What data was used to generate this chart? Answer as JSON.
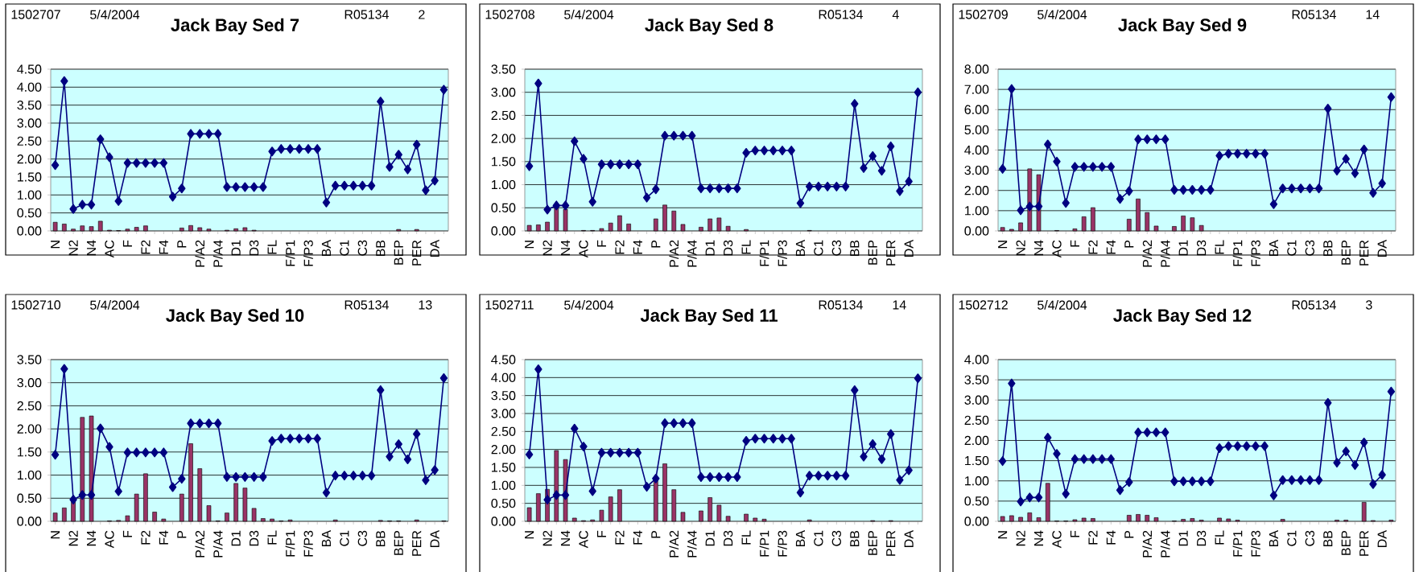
{
  "chart_data": [
    {
      "type": "bar",
      "title": "Jack Bay Sed 7",
      "annotations": [
        "1502707",
        "5/4/2004",
        "R05134",
        "2"
      ],
      "categories": [
        "N",
        null,
        "N2",
        null,
        "N4",
        null,
        "AC",
        null,
        "F",
        null,
        "F2",
        null,
        "F4",
        null,
        "P",
        null,
        "P/A2",
        null,
        "P/A4",
        null,
        "D1",
        null,
        "D3",
        null,
        "FL",
        null,
        "F/P1",
        null,
        "F/P3",
        null,
        "BA",
        null,
        "C1",
        null,
        "C3",
        null,
        "BB",
        null,
        "BEP",
        null,
        "PER",
        null,
        "DA",
        null
      ],
      "series": [
        {
          "color": "#993366",
          "values": [
            0.24,
            0.19,
            0.05,
            0.14,
            0.12,
            0.27,
            0.02,
            0.01,
            0.05,
            0.1,
            0.14,
            null,
            null,
            null,
            0.08,
            0.15,
            0.09,
            0.05,
            null,
            0.02,
            0.06,
            0.09,
            0.02,
            null,
            null,
            null,
            null,
            null,
            null,
            null,
            null,
            null,
            null,
            null,
            null,
            null,
            null,
            null,
            0.04,
            null,
            0.04,
            null,
            null,
            null
          ]
        },
        {
          "type": "line",
          "color": "#000080",
          "values": [
            1.83,
            4.17,
            0.61,
            0.73,
            0.73,
            2.55,
            2.05,
            0.83,
            1.89,
            1.89,
            1.89,
            1.89,
            1.89,
            0.95,
            1.18,
            2.7,
            2.7,
            2.7,
            2.7,
            1.22,
            1.22,
            1.22,
            1.22,
            1.22,
            2.21,
            2.28,
            2.28,
            2.28,
            2.28,
            2.28,
            0.79,
            1.26,
            1.26,
            1.26,
            1.26,
            1.26,
            3.6,
            1.78,
            2.12,
            1.71,
            2.4,
            1.13,
            1.4,
            3.93
          ]
        }
      ],
      "ylim": [
        0,
        4.5
      ],
      "yticks": [
        {
          "value": 0,
          "label": "0.00"
        },
        {
          "value": 0.5,
          "label": "0.50"
        },
        {
          "value": 1,
          "label": "1.00"
        },
        {
          "value": 1.5,
          "label": "1.50"
        },
        {
          "value": 2,
          "label": "2.00"
        },
        {
          "value": 2.5,
          "label": "2.50"
        },
        {
          "value": 3,
          "label": "3.00"
        },
        {
          "value": 3.5,
          "label": "3.50"
        },
        {
          "value": 4,
          "label": "4.00"
        },
        {
          "value": 4.5,
          "label": "4.50"
        }
      ],
      "grid": "y",
      "marker": "diamond"
    },
    {
      "type": "bar",
      "title": "Jack Bay Sed 8",
      "annotations": [
        "1502708",
        "5/4/2004",
        "R05134",
        "4"
      ],
      "categories": [
        "N",
        null,
        "N2",
        null,
        "N4",
        null,
        "AC",
        null,
        "F",
        null,
        "F2",
        null,
        "F4",
        null,
        "P",
        null,
        "P/A2",
        null,
        "P/A4",
        null,
        "D1",
        null,
        "D3",
        null,
        "FL",
        null,
        "F/P1",
        null,
        "F/P3",
        null,
        "BA",
        null,
        "C1",
        null,
        "C3",
        null,
        "BB",
        null,
        "BEP",
        null,
        "PER",
        null,
        "DA",
        null
      ],
      "series": [
        {
          "color": "#993366",
          "values": [
            0.12,
            0.13,
            0.19,
            0.55,
            0.47,
            null,
            0.01,
            0.01,
            0.05,
            0.17,
            0.33,
            0.15,
            null,
            null,
            0.26,
            0.56,
            0.43,
            0.14,
            null,
            0.08,
            0.26,
            0.28,
            0.1,
            null,
            0.03,
            null,
            null,
            null,
            null,
            null,
            null,
            0.01,
            null,
            null,
            null,
            null,
            null,
            null,
            null,
            null,
            null,
            null,
            null,
            null
          ]
        },
        {
          "type": "line",
          "color": "#000080",
          "values": [
            1.4,
            3.19,
            0.46,
            0.55,
            0.55,
            1.94,
            1.56,
            0.63,
            1.44,
            1.44,
            1.44,
            1.44,
            1.44,
            0.72,
            0.9,
            2.06,
            2.06,
            2.06,
            2.06,
            0.92,
            0.92,
            0.92,
            0.92,
            0.92,
            1.69,
            1.74,
            1.74,
            1.74,
            1.74,
            1.74,
            0.6,
            0.96,
            0.96,
            0.96,
            0.96,
            0.96,
            2.75,
            1.36,
            1.62,
            1.3,
            1.83,
            0.86,
            1.07,
            3.0
          ]
        }
      ],
      "ylim": [
        0,
        3.5
      ],
      "yticks": [
        {
          "value": 0,
          "label": "0.00"
        },
        {
          "value": 0.5,
          "label": "0.50"
        },
        {
          "value": 1,
          "label": "1.00"
        },
        {
          "value": 1.5,
          "label": "1.50"
        },
        {
          "value": 2,
          "label": "2.00"
        },
        {
          "value": 2.5,
          "label": "2.50"
        },
        {
          "value": 3,
          "label": "3.00"
        },
        {
          "value": 3.5,
          "label": "3.50"
        }
      ],
      "grid": "y",
      "marker": "diamond"
    },
    {
      "type": "bar",
      "title": "Jack Bay Sed 9",
      "annotations": [
        "1502709",
        "5/4/2004",
        "R05134",
        "14"
      ],
      "categories": [
        "N",
        null,
        "N2",
        null,
        "N4",
        null,
        "AC",
        null,
        "F",
        null,
        "F2",
        null,
        "F4",
        null,
        "P",
        null,
        "P/A2",
        null,
        "P/A4",
        null,
        "D1",
        null,
        "D3",
        null,
        "FL",
        null,
        "F/P1",
        null,
        "F/P3",
        null,
        "BA",
        null,
        "C1",
        null,
        "C3",
        null,
        "BB",
        null,
        "BEP",
        null,
        "PER",
        null,
        "DA",
        null
      ],
      "series": [
        {
          "color": "#993366",
          "values": [
            0.17,
            0.08,
            0.4,
            3.07,
            2.78,
            null,
            0.02,
            null,
            0.1,
            0.7,
            1.15,
            null,
            null,
            null,
            0.58,
            1.58,
            0.91,
            0.24,
            null,
            0.22,
            0.74,
            0.65,
            0.27,
            null,
            null,
            null,
            null,
            null,
            null,
            null,
            null,
            null,
            null,
            null,
            null,
            null,
            null,
            null,
            null,
            null,
            null,
            null,
            null,
            null
          ]
        },
        {
          "type": "line",
          "color": "#000080",
          "values": [
            3.07,
            7.02,
            1.02,
            1.21,
            1.21,
            4.28,
            3.43,
            1.38,
            3.17,
            3.17,
            3.17,
            3.17,
            3.17,
            1.58,
            1.97,
            4.53,
            4.53,
            4.53,
            4.53,
            2.03,
            2.03,
            2.03,
            2.03,
            2.03,
            3.72,
            3.82,
            3.82,
            3.82,
            3.82,
            3.82,
            1.32,
            2.1,
            2.1,
            2.1,
            2.1,
            2.1,
            6.05,
            2.98,
            3.56,
            2.85,
            4.03,
            1.88,
            2.35,
            6.62
          ]
        }
      ],
      "ylim": [
        0,
        8
      ],
      "yticks": [
        {
          "value": 0,
          "label": "0.00"
        },
        {
          "value": 1,
          "label": "1.00"
        },
        {
          "value": 2,
          "label": "2.00"
        },
        {
          "value": 3,
          "label": "3.00"
        },
        {
          "value": 4,
          "label": "4.00"
        },
        {
          "value": 5,
          "label": "5.00"
        },
        {
          "value": 6,
          "label": "6.00"
        },
        {
          "value": 7,
          "label": "7.00"
        },
        {
          "value": 8,
          "label": "8.00"
        }
      ],
      "grid": "y",
      "marker": "diamond"
    },
    {
      "type": "bar",
      "title": "Jack Bay Sed 10",
      "annotations": [
        "1502710",
        "5/4/2004",
        "R05134",
        "13"
      ],
      "categories": [
        "N",
        null,
        "N2",
        null,
        "N4",
        null,
        "AC",
        null,
        "F",
        null,
        "F2",
        null,
        "F4",
        null,
        "P",
        null,
        "P/A2",
        null,
        "P/A4",
        null,
        "D1",
        null,
        "D3",
        null,
        "FL",
        null,
        "F/P1",
        null,
        "F/P3",
        null,
        "BA",
        null,
        "C1",
        null,
        "C3",
        null,
        "BB",
        null,
        "BEP",
        null,
        "PER",
        null,
        "DA",
        null
      ],
      "series": [
        {
          "color": "#993366",
          "values": [
            0.18,
            0.29,
            0.47,
            2.25,
            2.28,
            null,
            0.01,
            0.02,
            0.12,
            0.59,
            1.03,
            0.2,
            0.05,
            null,
            0.59,
            1.68,
            1.14,
            0.34,
            0.01,
            0.18,
            0.82,
            0.72,
            0.28,
            0.06,
            0.05,
            0.01,
            0.03,
            null,
            null,
            null,
            null,
            0.03,
            null,
            null,
            null,
            null,
            0.02,
            0.01,
            0.01,
            null,
            0.03,
            null,
            null,
            0.01
          ]
        },
        {
          "type": "line",
          "color": "#000080",
          "values": [
            1.44,
            3.3,
            0.47,
            0.57,
            0.57,
            2.01,
            1.61,
            0.65,
            1.49,
            1.49,
            1.49,
            1.49,
            1.49,
            0.74,
            0.92,
            2.12,
            2.12,
            2.12,
            2.12,
            0.96,
            0.96,
            0.96,
            0.96,
            0.96,
            1.74,
            1.79,
            1.79,
            1.79,
            1.79,
            1.79,
            0.62,
            0.99,
            0.99,
            0.99,
            0.99,
            0.99,
            2.84,
            1.4,
            1.67,
            1.34,
            1.89,
            0.89,
            1.11,
            3.1
          ]
        }
      ],
      "ylim": [
        0,
        3.5
      ],
      "yticks": [
        {
          "value": 0,
          "label": "0.00"
        },
        {
          "value": 0.5,
          "label": "0.50"
        },
        {
          "value": 1,
          "label": "1.00"
        },
        {
          "value": 1.5,
          "label": "1.50"
        },
        {
          "value": 2,
          "label": "2.00"
        },
        {
          "value": 2.5,
          "label": "2.50"
        },
        {
          "value": 3,
          "label": "3.00"
        },
        {
          "value": 3.5,
          "label": "3.50"
        }
      ],
      "grid": "y",
      "marker": "diamond"
    },
    {
      "type": "bar",
      "title": "Jack Bay Sed 11",
      "annotations": [
        "1502711",
        "5/4/2004",
        "R05134",
        "14"
      ],
      "categories": [
        "N",
        null,
        "N2",
        null,
        "N4",
        null,
        "AC",
        null,
        "F",
        null,
        "F2",
        null,
        "F4",
        null,
        "P",
        null,
        "P/A2",
        null,
        "P/A4",
        null,
        "D1",
        null,
        "D3",
        null,
        "FL",
        null,
        "F/P1",
        null,
        "F/P3",
        null,
        "BA",
        null,
        "C1",
        null,
        "C3",
        null,
        "BB",
        null,
        "BEP",
        null,
        "PER",
        null,
        "DA",
        null
      ],
      "series": [
        {
          "color": "#993366",
          "values": [
            0.38,
            0.77,
            0.89,
            1.97,
            1.72,
            0.09,
            0.02,
            0.04,
            0.31,
            0.68,
            0.88,
            null,
            null,
            null,
            1.2,
            1.6,
            0.88,
            0.25,
            null,
            0.29,
            0.66,
            0.45,
            0.14,
            null,
            0.2,
            0.09,
            0.06,
            null,
            null,
            null,
            null,
            0.04,
            null,
            null,
            null,
            null,
            null,
            null,
            0.02,
            null,
            0.02,
            null,
            null,
            null
          ]
        },
        {
          "type": "line",
          "color": "#000080",
          "values": [
            1.86,
            4.23,
            0.6,
            0.73,
            0.73,
            2.58,
            2.08,
            0.84,
            1.91,
            1.91,
            1.91,
            1.91,
            1.91,
            0.96,
            1.19,
            2.73,
            2.73,
            2.73,
            2.73,
            1.23,
            1.23,
            1.23,
            1.23,
            1.23,
            2.24,
            2.3,
            2.3,
            2.3,
            2.3,
            2.3,
            0.8,
            1.27,
            1.27,
            1.27,
            1.27,
            1.27,
            3.65,
            1.8,
            2.15,
            1.73,
            2.43,
            1.15,
            1.42,
            3.98
          ]
        }
      ],
      "ylim": [
        0,
        4.5
      ],
      "yticks": [
        {
          "value": 0,
          "label": "0.00"
        },
        {
          "value": 0.5,
          "label": "0.50"
        },
        {
          "value": 1,
          "label": "1.00"
        },
        {
          "value": 1.5,
          "label": "1.50"
        },
        {
          "value": 2,
          "label": "2.00"
        },
        {
          "value": 2.5,
          "label": "2.50"
        },
        {
          "value": 3,
          "label": "3.00"
        },
        {
          "value": 3.5,
          "label": "3.50"
        },
        {
          "value": 4,
          "label": "4.00"
        },
        {
          "value": 4.5,
          "label": "4.50"
        }
      ],
      "grid": "y",
      "marker": "diamond"
    },
    {
      "type": "bar",
      "title": "Jack Bay Sed 12",
      "annotations": [
        "1502712",
        "5/4/2004",
        "R05134",
        "3"
      ],
      "categories": [
        "N",
        null,
        "N2",
        null,
        "N4",
        null,
        "AC",
        null,
        "F",
        null,
        "F2",
        null,
        "F4",
        null,
        "P",
        null,
        "P/A2",
        null,
        "P/A4",
        null,
        "D1",
        null,
        "D3",
        null,
        "FL",
        null,
        "F/P1",
        null,
        "F/P3",
        null,
        "BA",
        null,
        "C1",
        null,
        "C3",
        null,
        "BB",
        null,
        "BEP",
        null,
        "PER",
        null,
        "DA",
        null
      ],
      "series": [
        {
          "color": "#993366",
          "values": [
            0.12,
            0.14,
            0.1,
            0.21,
            0.09,
            0.94,
            0.01,
            0.01,
            0.04,
            0.08,
            0.07,
            null,
            null,
            null,
            0.15,
            0.17,
            0.15,
            0.09,
            null,
            0.01,
            0.05,
            0.07,
            0.03,
            null,
            0.08,
            0.06,
            0.03,
            null,
            null,
            null,
            null,
            0.05,
            null,
            null,
            null,
            null,
            null,
            0.03,
            0.03,
            null,
            0.47,
            0.02,
            null,
            0.03
          ]
        },
        {
          "type": "line",
          "color": "#000080",
          "values": [
            1.49,
            3.41,
            0.49,
            0.59,
            0.59,
            2.07,
            1.67,
            0.68,
            1.54,
            1.54,
            1.54,
            1.54,
            1.54,
            0.77,
            0.97,
            2.2,
            2.2,
            2.2,
            2.2,
            0.99,
            0.99,
            0.99,
            0.99,
            0.99,
            1.81,
            1.86,
            1.86,
            1.86,
            1.86,
            1.86,
            0.64,
            1.02,
            1.02,
            1.02,
            1.02,
            1.02,
            2.93,
            1.45,
            1.73,
            1.39,
            1.95,
            0.92,
            1.15,
            3.21
          ]
        }
      ],
      "ylim": [
        0,
        4
      ],
      "yticks": [
        {
          "value": 0,
          "label": "0.00"
        },
        {
          "value": 0.5,
          "label": "0.50"
        },
        {
          "value": 1,
          "label": "1.00"
        },
        {
          "value": 1.5,
          "label": "1.50"
        },
        {
          "value": 2,
          "label": "2.00"
        },
        {
          "value": 2.5,
          "label": "2.50"
        },
        {
          "value": 3,
          "label": "3.00"
        },
        {
          "value": 3.5,
          "label": "3.50"
        },
        {
          "value": 4,
          "label": "4.00"
        }
      ],
      "grid": "y",
      "marker": "diamond"
    }
  ]
}
